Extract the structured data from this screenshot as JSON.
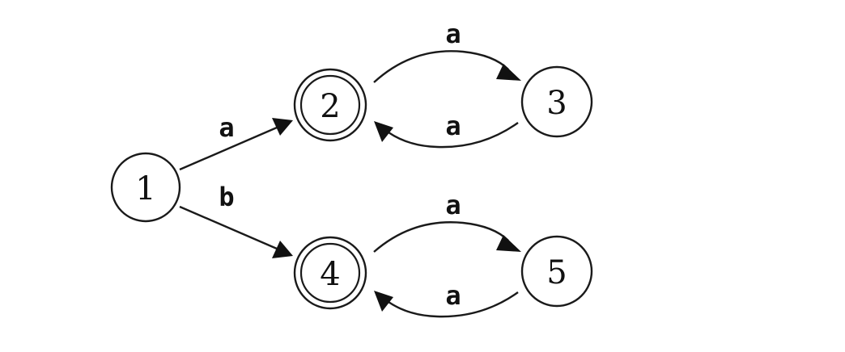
{
  "states": [
    {
      "id": "1",
      "label": "1",
      "accepting": false
    },
    {
      "id": "2",
      "label": "2",
      "accepting": true
    },
    {
      "id": "3",
      "label": "3",
      "accepting": false
    },
    {
      "id": "4",
      "label": "4",
      "accepting": true
    },
    {
      "id": "5",
      "label": "5",
      "accepting": false
    }
  ],
  "transitions": [
    {
      "from": "1",
      "to": "2",
      "label": "a"
    },
    {
      "from": "1",
      "to": "4",
      "label": "b"
    },
    {
      "from": "2",
      "to": "3",
      "label": "a"
    },
    {
      "from": "3",
      "to": "2",
      "label": "a"
    },
    {
      "from": "4",
      "to": "5",
      "label": "a"
    },
    {
      "from": "5",
      "to": "4",
      "label": "a"
    }
  ]
}
